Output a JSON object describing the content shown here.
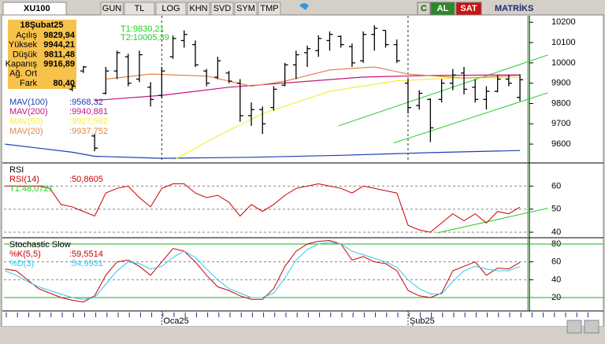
{
  "toolbar": {
    "symbol": "XU100",
    "buttons": [
      "GUN",
      "TL",
      "LOG",
      "KHN",
      "SVD",
      "SYM",
      "TMP"
    ],
    "right": [
      "C",
      "AL",
      "SAT"
    ],
    "brand": "MATRİKS"
  },
  "info_box": {
    "date": "18Şubat25",
    "rows": [
      {
        "label": "Açılış",
        "value": "9829,94"
      },
      {
        "label": "Yüksek",
        "value": "9944,21"
      },
      {
        "label": "Düşük",
        "value": "9811,48"
      },
      {
        "label": "Kapanış",
        "value": "9916,89"
      },
      {
        "label": "Ağ. Ort"
      },
      {
        "label": "Fark",
        "value": "80,40"
      }
    ]
  },
  "chart_data": [
    {
      "type": "ohlc",
      "color": "#000000",
      "xlim": [
        -6.1,
        40.7
      ],
      "ylim": [
        9515,
        10232
      ],
      "yticks": [
        9600,
        9700,
        9800,
        9900,
        10000,
        10100,
        10200
      ],
      "xgrid": true,
      "xticks": [
        {
          "value": 8,
          "label": "Oca25"
        },
        {
          "value": 30,
          "label": "Şub25"
        }
      ],
      "x": [
        0,
        1,
        2,
        3,
        4,
        5,
        6,
        7,
        8,
        9,
        10,
        11,
        12,
        13,
        14,
        15,
        16,
        17,
        18,
        19,
        20,
        21,
        22,
        23,
        24,
        25,
        26,
        27,
        28,
        29,
        30,
        31,
        32,
        33,
        34,
        35,
        36,
        37,
        38,
        39,
        40
      ],
      "open": [
        9870,
        9960,
        9640,
        9850,
        9960,
        10030,
        9920,
        9880,
        9840,
        10030,
        10110,
        10090,
        9960,
        9930,
        9950,
        9900,
        9740,
        9770,
        9780,
        9890,
        9990,
        10050,
        10060,
        10110,
        10130,
        10080,
        10010,
        10140,
        10160,
        10090,
        9900,
        9790,
        9820,
        9820,
        9900,
        9950,
        9880,
        9820,
        9860,
        9920,
        9829.94
      ],
      "high": [
        9895,
        9985,
        9650,
        9980,
        10060,
        10045,
        10060,
        9905,
        9980,
        10135,
        10160,
        10110,
        9970,
        10030,
        9960,
        9920,
        9805,
        9785,
        9885,
        10000,
        10060,
        10085,
        10135,
        10155,
        10135,
        10095,
        10155,
        10185,
        10160,
        10115,
        9920,
        9865,
        9825,
        9920,
        9970,
        9980,
        9920,
        9885,
        9940,
        9940,
        9944.21
      ],
      "low": [
        9860,
        9950,
        9565,
        9845,
        9920,
        9885,
        9905,
        9785,
        9825,
        10020,
        10075,
        9980,
        9885,
        9920,
        9900,
        9710,
        9690,
        9650,
        9765,
        9885,
        9920,
        9980,
        10030,
        10060,
        10075,
        9980,
        10000,
        10060,
        10075,
        10000,
        9750,
        9770,
        9610,
        9805,
        9865,
        9845,
        9805,
        9770,
        9855,
        9885,
        9811.48
      ],
      "close": [
        9885,
        9980,
        9580,
        9960,
        10050,
        9900,
        10040,
        9820,
        9960,
        10120,
        10140,
        9990,
        9900,
        10010,
        9910,
        9740,
        9770,
        9700,
        9870,
        9990,
        10040,
        10070,
        10120,
        10140,
        10090,
        10000,
        10140,
        10170,
        10090,
        10010,
        9780,
        9850,
        9680,
        9900,
        9940,
        9870,
        9820,
        9860,
        9920,
        9900,
        9916.89
      ],
      "series": [
        {
          "name": "MAV(100)",
          "legend_value": ":9568,32",
          "color": "#1c3fb0",
          "x": [
            -6,
            -3,
            0,
            2,
            8,
            16,
            24,
            32,
            40
          ],
          "values": [
            9600,
            9580,
            9560,
            9540,
            9530,
            9535,
            9545,
            9558,
            9568.32
          ]
        },
        {
          "name": "MAV(200)",
          "legend_value": ":9940,881",
          "color": "#c8147c",
          "x": [
            2,
            8,
            14,
            20,
            26,
            32,
            40
          ],
          "values": [
            9815,
            9840,
            9880,
            9905,
            9930,
            9938,
            9940.881
          ]
        },
        {
          "name": "MAV(50)",
          "legend_value": ":9927,592",
          "color": "#f2f23a",
          "x": [
            9,
            13,
            17,
            23,
            29,
            34,
            40
          ],
          "values": [
            9520,
            9640,
            9750,
            9860,
            9912,
            9925,
            9927.592
          ]
        },
        {
          "name": "MAV(20)",
          "legend_value": ":9937,752",
          "color": "#e0864a",
          "x": [
            3,
            7,
            12,
            16,
            19,
            23,
            27,
            30,
            35,
            40
          ],
          "values": [
            9920,
            9945,
            9935,
            9885,
            9910,
            9965,
            9980,
            9945,
            9925,
            9937.752
          ]
        }
      ],
      "trend_lines": [
        {
          "color": "#22cc22",
          "x": [
            23.8,
            42.5
          ],
          "values": [
            9690,
            10039
          ]
        },
        {
          "color": "#22cc22",
          "x": [
            28.7,
            42.5
          ],
          "values": [
            9605,
            9853
          ]
        }
      ],
      "annotations": [
        "T1:9830,21",
        "T2:10005,39"
      ],
      "annotation_color": "#22cc22"
    },
    {
      "type": "line",
      "title": "RSI",
      "xlim": [
        -6.1,
        40.7
      ],
      "ylim": [
        38.3,
        69
      ],
      "yticks": [
        40,
        50,
        60
      ],
      "grid": true,
      "xgrid": true,
      "x": [
        -6,
        -5,
        -4,
        -3,
        -2,
        -1,
        0,
        1,
        2,
        3,
        4,
        5,
        6,
        7,
        8,
        9,
        10,
        11,
        12,
        13,
        14,
        15,
        16,
        17,
        18,
        19,
        20,
        21,
        22,
        23,
        24,
        25,
        26,
        27,
        28,
        29,
        30,
        31,
        32,
        33,
        34,
        35,
        36,
        37,
        38,
        39,
        40
      ],
      "series": [
        {
          "name": "RSI(14)",
          "legend_value": ":50,8605",
          "color": "#cc0000",
          "values": [
            60,
            60,
            60,
            60,
            59,
            52,
            51,
            49,
            47,
            57,
            59,
            60,
            55,
            51,
            59,
            61,
            61,
            57,
            55,
            56,
            53,
            47,
            52,
            49,
            52,
            56,
            59,
            60,
            61,
            60,
            59,
            57,
            60,
            59,
            58,
            57,
            43,
            41,
            40,
            44,
            48,
            45,
            48,
            44,
            49,
            48,
            50.8605
          ]
        }
      ],
      "trend_lines": [
        {
          "color": "#22cc22",
          "x": [
            32.6,
            42.5
          ],
          "values": [
            39.7,
            50.4
          ]
        }
      ],
      "annotations": [
        "T1:48,0721"
      ],
      "annotation_color": "#22cc22"
    },
    {
      "type": "line",
      "title": "Stochastic Slow",
      "xlim": [
        -6.1,
        40.7
      ],
      "ylim": [
        6.8,
        84.4
      ],
      "yticks": [
        20,
        40,
        60,
        80
      ],
      "grid": true,
      "xgrid": true,
      "levels": [
        20,
        80
      ],
      "level_color": "#22aa22",
      "x": [
        -6,
        -5,
        -4,
        -3,
        -2,
        -1,
        0,
        1,
        2,
        3,
        4,
        5,
        6,
        7,
        8,
        9,
        10,
        11,
        12,
        13,
        14,
        15,
        16,
        17,
        18,
        19,
        20,
        21,
        22,
        23,
        24,
        25,
        26,
        27,
        28,
        29,
        30,
        31,
        32,
        33,
        34,
        35,
        36,
        37,
        38,
        39,
        40
      ],
      "series": [
        {
          "name": "%K(5,5)",
          "legend_value": ":59,5514",
          "color": "#cc0000",
          "values": [
            52,
            50,
            40,
            30,
            25,
            20,
            17,
            15,
            22,
            45,
            60,
            62,
            55,
            45,
            60,
            75,
            72,
            60,
            45,
            32,
            28,
            22,
            18,
            18,
            30,
            55,
            72,
            80,
            83,
            84,
            80,
            62,
            66,
            60,
            58,
            50,
            28,
            22,
            20,
            25,
            50,
            55,
            60,
            45,
            53,
            52,
            59.5514
          ]
        },
        {
          "name": "%D(3)",
          "legend_value": ":54,9931",
          "color": "#33c8e8",
          "values": [
            50,
            45,
            38,
            32,
            28,
            24,
            20,
            18,
            20,
            35,
            50,
            60,
            58,
            52,
            55,
            65,
            72,
            65,
            52,
            40,
            30,
            25,
            20,
            20,
            25,
            42,
            62,
            74,
            80,
            82,
            80,
            72,
            68,
            64,
            60,
            54,
            40,
            30,
            24,
            24,
            38,
            50,
            55,
            52,
            50,
            50,
            54.9931
          ]
        }
      ]
    }
  ]
}
